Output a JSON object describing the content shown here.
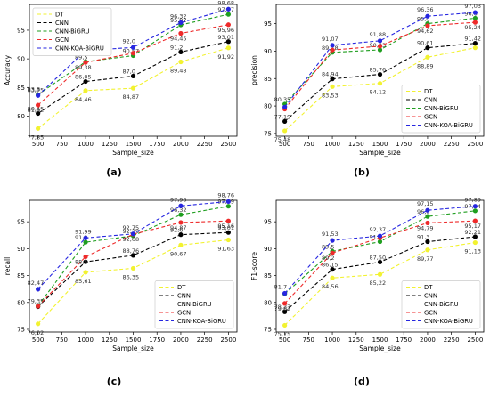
{
  "figure": {
    "panel_captions": [
      "(a)",
      "(b)",
      "(c)",
      "(d)"
    ]
  },
  "styles": {
    "colors": {
      "DT": "#f2f230",
      "CNN": "#000000",
      "CNN-BiGRU": "#1f9e1f",
      "GCN": "#ee2a2a",
      "CNN-KOA-BiGRU": "#2626e0"
    },
    "line_style": "dashed",
    "marker": "circle"
  },
  "chart_data": [
    {
      "type": "line",
      "caption": "(a)",
      "xlabel": "Sample_size",
      "ylabel": "Accuracy",
      "x": [
        500,
        1000,
        1500,
        2000,
        2500
      ],
      "xticks": [
        500,
        750,
        1000,
        1250,
        1500,
        1750,
        2000,
        2250,
        2500
      ],
      "xlim": [
        410,
        2590
      ],
      "yticks": [
        80,
        85,
        90,
        95
      ],
      "ylim": [
        76.5,
        99.5
      ],
      "legend": "top-left",
      "series": [
        {
          "name": "DT",
          "values": [
            77.85,
            84.46,
            84.87,
            89.48,
            91.92
          ],
          "labels": [
            "77,85",
            "84,46",
            "84,87",
            "89,48",
            "91,92"
          ]
        },
        {
          "name": "CNN",
          "values": [
            80.45,
            86.05,
            87.0,
            91.2,
            93.01
          ],
          "labels": [
            "80,45",
            "86,05",
            "87,0",
            "91,2",
            "93,01"
          ]
        },
        {
          "name": "CNN-BiGRU",
          "values": [
            83.75,
            89.5,
            90.57,
            95.92,
            97.77
          ],
          "labels": [
            "83,75",
            "89,5",
            "90,57",
            "95,92",
            "97,77"
          ]
        },
        {
          "name": "GCN",
          "values": [
            81.92,
            89.38,
            91.0,
            94.45,
            95.96
          ],
          "labels": [
            "81,92",
            "89,38",
            "",
            "94,45",
            "95,96"
          ]
        },
        {
          "name": "CNN-KOA-BiGRU",
          "values": [
            83.6,
            91.45,
            92.0,
            96.32,
            98.68
          ],
          "labels": [
            "83,6",
            "91,45",
            "92,0",
            "96,32",
            "98,68"
          ]
        }
      ]
    },
    {
      "type": "line",
      "caption": "(b)",
      "xlabel": "Sample_size",
      "ylabel": "precision",
      "x": [
        500,
        1000,
        1500,
        2000,
        2500
      ],
      "xticks": [
        500,
        750,
        1000,
        1250,
        1500,
        1750,
        2000,
        2250,
        2500
      ],
      "xlim": [
        410,
        2590
      ],
      "yticks": [
        75,
        80,
        85,
        90,
        95
      ],
      "ylim": [
        74.5,
        98.5
      ],
      "legend": "bottom-right",
      "series": [
        {
          "name": "DT",
          "values": [
            75.48,
            83.53,
            84.12,
            88.89,
            90.61
          ],
          "labels": [
            "75,48",
            "83,53",
            "84,12",
            "88,89",
            ""
          ]
        },
        {
          "name": "CNN",
          "values": [
            77.19,
            84.94,
            85.76,
            90.61,
            91.42
          ],
          "labels": [
            "77,19",
            "84,94",
            "85,76",
            "90,61",
            "91,42"
          ]
        },
        {
          "name": "CNN-BiGRU",
          "values": [
            80.35,
            89.78,
            90.23,
            95.0,
            96.0
          ],
          "labels": [
            "80,35",
            "89,78",
            "90,23",
            "95,0",
            "96,0"
          ]
        },
        {
          "name": "GCN",
          "values": [
            79.45,
            90.2,
            90.9,
            94.62,
            95.24
          ],
          "labels": [
            "",
            "",
            "",
            "94,62",
            "95,24"
          ]
        },
        {
          "name": "CNN-KOA-BiGRU",
          "values": [
            79.8,
            91.07,
            91.88,
            96.36,
            97.03
          ],
          "labels": [
            "",
            "91,07",
            "91,88",
            "96,36",
            "97,03"
          ]
        }
      ]
    },
    {
      "type": "line",
      "caption": "(c)",
      "xlabel": "Sample_size",
      "ylabel": "recall",
      "x": [
        500,
        1000,
        1500,
        2000,
        2500
      ],
      "xticks": [
        500,
        750,
        1000,
        1250,
        1500,
        1750,
        2000,
        2250,
        2500
      ],
      "xlim": [
        410,
        2590
      ],
      "yticks": [
        75,
        80,
        85,
        90,
        95
      ],
      "ylim": [
        74.5,
        99.0
      ],
      "legend": "bottom-right",
      "series": [
        {
          "name": "DT",
          "values": [
            76.02,
            85.61,
            86.35,
            90.67,
            91.63
          ],
          "labels": [
            "76,02",
            "85,61",
            "86,35",
            "90,67",
            "91,63"
          ]
        },
        {
          "name": "CNN",
          "values": [
            79.22,
            87.55,
            88.76,
            92.6,
            93.01
          ],
          "labels": [
            "",
            "",
            "88,76",
            "92,6",
            "93,01"
          ]
        },
        {
          "name": "CNN-BiGRU",
          "values": [
            79.35,
            91.2,
            92.39,
            96.32,
            97.89
          ],
          "labels": [
            "79,35",
            "91,2",
            "92,39",
            "96,32",
            "97,89"
          ]
        },
        {
          "name": "GCN",
          "values": [
            79.3,
            88.5,
            92.68,
            94.87,
            95.16
          ],
          "labels": [
            "",
            "88,5",
            "92,68",
            "94,87",
            "95,16"
          ]
        },
        {
          "name": "CNN-KOA-BiGRU",
          "values": [
            82.47,
            91.99,
            92.75,
            97.96,
            98.76
          ],
          "labels": [
            "82,47",
            "91,99",
            "92,75",
            "97,96",
            "98,76"
          ]
        }
      ]
    },
    {
      "type": "line",
      "caption": "(d)",
      "xlabel": "Sample_size",
      "ylabel": "F1-score",
      "x": [
        500,
        1000,
        1500,
        2000,
        2500
      ],
      "xticks": [
        500,
        750,
        1000,
        1250,
        1500,
        1750,
        2000,
        2250,
        2500
      ],
      "xlim": [
        410,
        2590
      ],
      "yticks": [
        75,
        80,
        85,
        90,
        95
      ],
      "ylim": [
        74.5,
        99.0
      ],
      "legend": "bottom-right",
      "series": [
        {
          "name": "DT",
          "values": [
            75.75,
            84.56,
            85.22,
            89.77,
            91.13
          ],
          "labels": [
            "75,75",
            "84,56",
            "85,22",
            "89,77",
            "91,13"
          ]
        },
        {
          "name": "CNN",
          "values": [
            78.27,
            86.15,
            87.5,
            91.3,
            92.21
          ],
          "labels": [
            "78,27",
            "86,15",
            "87,50",
            "91,3",
            "92,21"
          ]
        },
        {
          "name": "CNN-BiGRU",
          "values": [
            81.6,
            89.5,
            91.3,
            96.0,
            97.04
          ],
          "labels": [
            "",
            "89,5",
            "91,3",
            "96,0",
            "97,04"
          ]
        },
        {
          "name": "GCN",
          "values": [
            79.82,
            89.2,
            92.0,
            94.79,
            95.17
          ],
          "labels": [
            "79,82",
            "89,2",
            "",
            "94,79",
            "95,17"
          ]
        },
        {
          "name": "CNN-KOA-BiGRU",
          "values": [
            81.7,
            91.53,
            92.37,
            97.15,
            97.89
          ],
          "labels": [
            "81,7",
            "91,53",
            "92,37",
            "97,15",
            "97,89"
          ]
        }
      ]
    }
  ]
}
